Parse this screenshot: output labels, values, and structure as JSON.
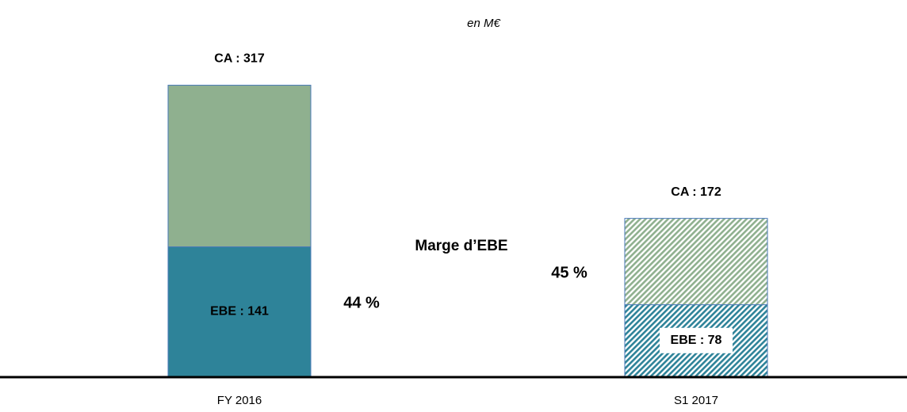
{
  "chart_data": {
    "type": "stacked_bar",
    "subtitle": "en M€",
    "categories": [
      "FY 2016",
      "S1 2017"
    ],
    "series": [
      {
        "color": "#2e8399",
        "values": [
          141,
          78
        ],
        "value_labels": [
          "EBE : 141",
          "EBE : 78"
        ]
      },
      {
        "color": "#8fb08f",
        "values": [
          176,
          94
        ]
      }
    ],
    "totals": [
      317,
      172
    ],
    "total_labels": [
      "CA : 317",
      "CA : 172"
    ],
    "hatched": [
      false,
      true
    ],
    "annotation": "Marge d’EBE",
    "margins": [
      44,
      45
    ],
    "margin_labels": [
      "44 %",
      "45 %"
    ],
    "ylim": [
      0,
      358
    ]
  }
}
